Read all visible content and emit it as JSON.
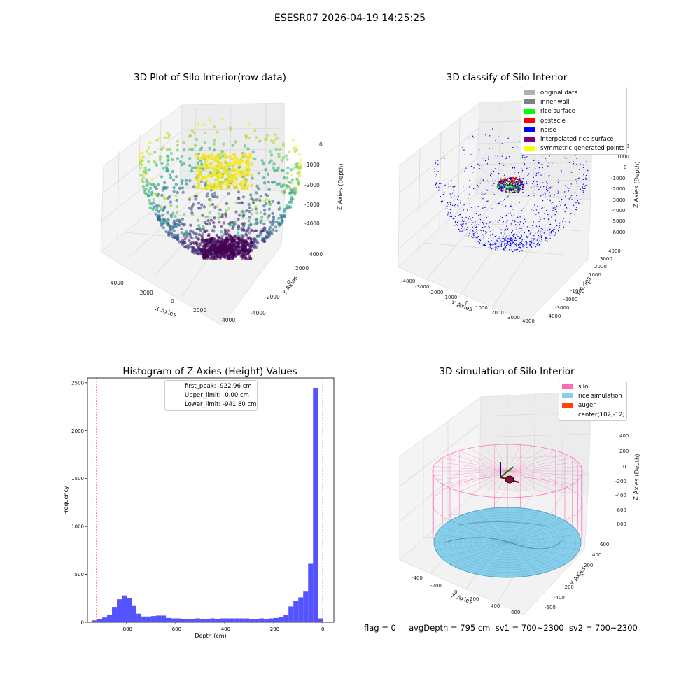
{
  "suptitle": "ESESR07 2026-04-19 14:25:25",
  "footer": "flag = 0     avgDepth = 795 cm  sv1 = 700~2300  sv2 = 700~2300",
  "panels": {
    "raw": {
      "title": "3D Plot of Silo Interior(row data)",
      "x_label": "X Axies",
      "y_label": "Y Axies",
      "z_label": "Z Axies (Depth)",
      "x_ticks": [
        "-4000",
        "-2000",
        "0",
        "2000",
        "4000"
      ],
      "y_ticks": [
        "4000",
        "2000",
        "0",
        "-2000",
        "-4000"
      ],
      "z_ticks": [
        "0",
        "-1000",
        "-2000",
        "-3000",
        "-4000"
      ]
    },
    "classify": {
      "title": "3D classify of Silo Interior",
      "x_label": "X Axies",
      "y_label": "Y Axies",
      "z_label": "Z Axies (Depth)",
      "x_ticks": [
        "-4000",
        "-3000",
        "-2000",
        "-1000",
        "0",
        "1000",
        "2000",
        "3000",
        "4000"
      ],
      "y_ticks": [
        "4000",
        "3000",
        "2000",
        "1000",
        "0",
        "-1000",
        "-2000",
        "-3000",
        "-4000"
      ],
      "z_ticks": [
        "2000",
        "1000",
        "0",
        "-1000",
        "-2000",
        "-3000",
        "-4000",
        "-5000",
        "-6000"
      ],
      "legend": [
        {
          "label": "original data",
          "color": "#b0b0b0"
        },
        {
          "label": "inner wall",
          "color": "#808080"
        },
        {
          "label": "rice surface",
          "color": "#00ff00"
        },
        {
          "label": "obstacle",
          "color": "#ff0000"
        },
        {
          "label": "noise",
          "color": "#0000ff"
        },
        {
          "label": "interpolated rice surface",
          "color": "#800080"
        },
        {
          "label": "symmetric generated points",
          "color": "#ffff00"
        }
      ]
    },
    "histogram": {
      "title": "Histogram of Z-Axies (Height) Values",
      "x_label": "Depth (cm)",
      "y_label": "Frequency",
      "legend": [
        {
          "label": "first_peak: -922.96 cm",
          "color": "#ff0000"
        },
        {
          "label": "Upper_limit: -0.00 cm",
          "color": "#00008b"
        },
        {
          "label": "Lower_limit: -941.80 cm",
          "color": "#0000ff"
        }
      ]
    },
    "simulation": {
      "title": "3D simulation of Silo Interior",
      "x_label": "X Axies",
      "y_label": "Y Axies",
      "z_label": "Z Axies (Depth)",
      "x_ticks": [
        "-400",
        "-200",
        "0",
        "200",
        "400",
        "600"
      ],
      "y_ticks": [
        "600",
        "400",
        "200",
        "0",
        "-200",
        "-400",
        "-600"
      ],
      "z_ticks": [
        "400",
        "200",
        "0",
        "-200",
        "-400",
        "-600",
        "-800"
      ],
      "legend": [
        {
          "label": "silo",
          "color": "#ff69b4"
        },
        {
          "label": "rice simulation",
          "color": "#87ceeb"
        },
        {
          "label": "auger",
          "color": "#ff4500"
        },
        {
          "label": "center(102,-12)",
          "color": ""
        }
      ]
    }
  },
  "chart_data": {
    "type": "bar",
    "title": "Histogram of Z-Axies (Height) Values",
    "xlabel": "Depth (cm)",
    "ylabel": "Frequency",
    "xlim": [
      -960,
      45
    ],
    "ylim": [
      0,
      2550
    ],
    "x_ticks": [
      -800,
      -600,
      -400,
      -200,
      0
    ],
    "y_ticks": [
      0,
      500,
      1000,
      1500,
      2000,
      2500
    ],
    "bin_width": 20,
    "bins_start": [
      -940,
      -920,
      -900,
      -880,
      -860,
      -840,
      -820,
      -800,
      -780,
      -760,
      -740,
      -720,
      -700,
      -680,
      -660,
      -640,
      -620,
      -600,
      -580,
      -560,
      -540,
      -520,
      -500,
      -480,
      -460,
      -440,
      -420,
      -400,
      -380,
      -360,
      -340,
      -320,
      -300,
      -280,
      -260,
      -240,
      -220,
      -200,
      -180,
      -160,
      -140,
      -120,
      -100,
      -80,
      -60,
      -40,
      -20
    ],
    "values": [
      20,
      30,
      50,
      80,
      160,
      240,
      280,
      250,
      170,
      90,
      60,
      60,
      65,
      70,
      70,
      45,
      40,
      40,
      35,
      30,
      30,
      40,
      35,
      30,
      40,
      35,
      40,
      40,
      40,
      40,
      40,
      40,
      35,
      35,
      40,
      35,
      40,
      45,
      55,
      80,
      165,
      225,
      260,
      320,
      610,
      2440,
      40
    ],
    "series": [
      {
        "name": "",
        "values": []
      }
    ],
    "vlines": [
      {
        "name": "first_peak: -922.96 cm",
        "x": -922.96,
        "color": "#ff0000"
      },
      {
        "name": "Upper_limit: -0.00 cm",
        "x": 0,
        "color": "#00008b"
      },
      {
        "name": "Lower_limit: -941.80 cm",
        "x": -941.8,
        "color": "#0000ff"
      }
    ]
  }
}
